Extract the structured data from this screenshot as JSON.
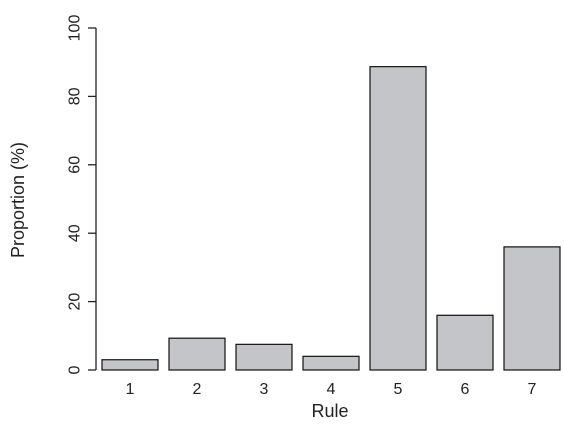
{
  "chart_data": {
    "type": "bar",
    "categories": [
      "1",
      "2",
      "3",
      "4",
      "5",
      "6",
      "7"
    ],
    "values": [
      3,
      9.3,
      7.5,
      4,
      88.7,
      16,
      36
    ],
    "xlabel": "Rule",
    "ylabel": "Proportion (%)",
    "ylim": [
      0,
      100
    ],
    "yticks": [
      0,
      20,
      40,
      60,
      80,
      100
    ],
    "grid": false,
    "colors": {
      "bar_fill": "#c4c5c8",
      "bar_stroke": "#111111"
    }
  }
}
